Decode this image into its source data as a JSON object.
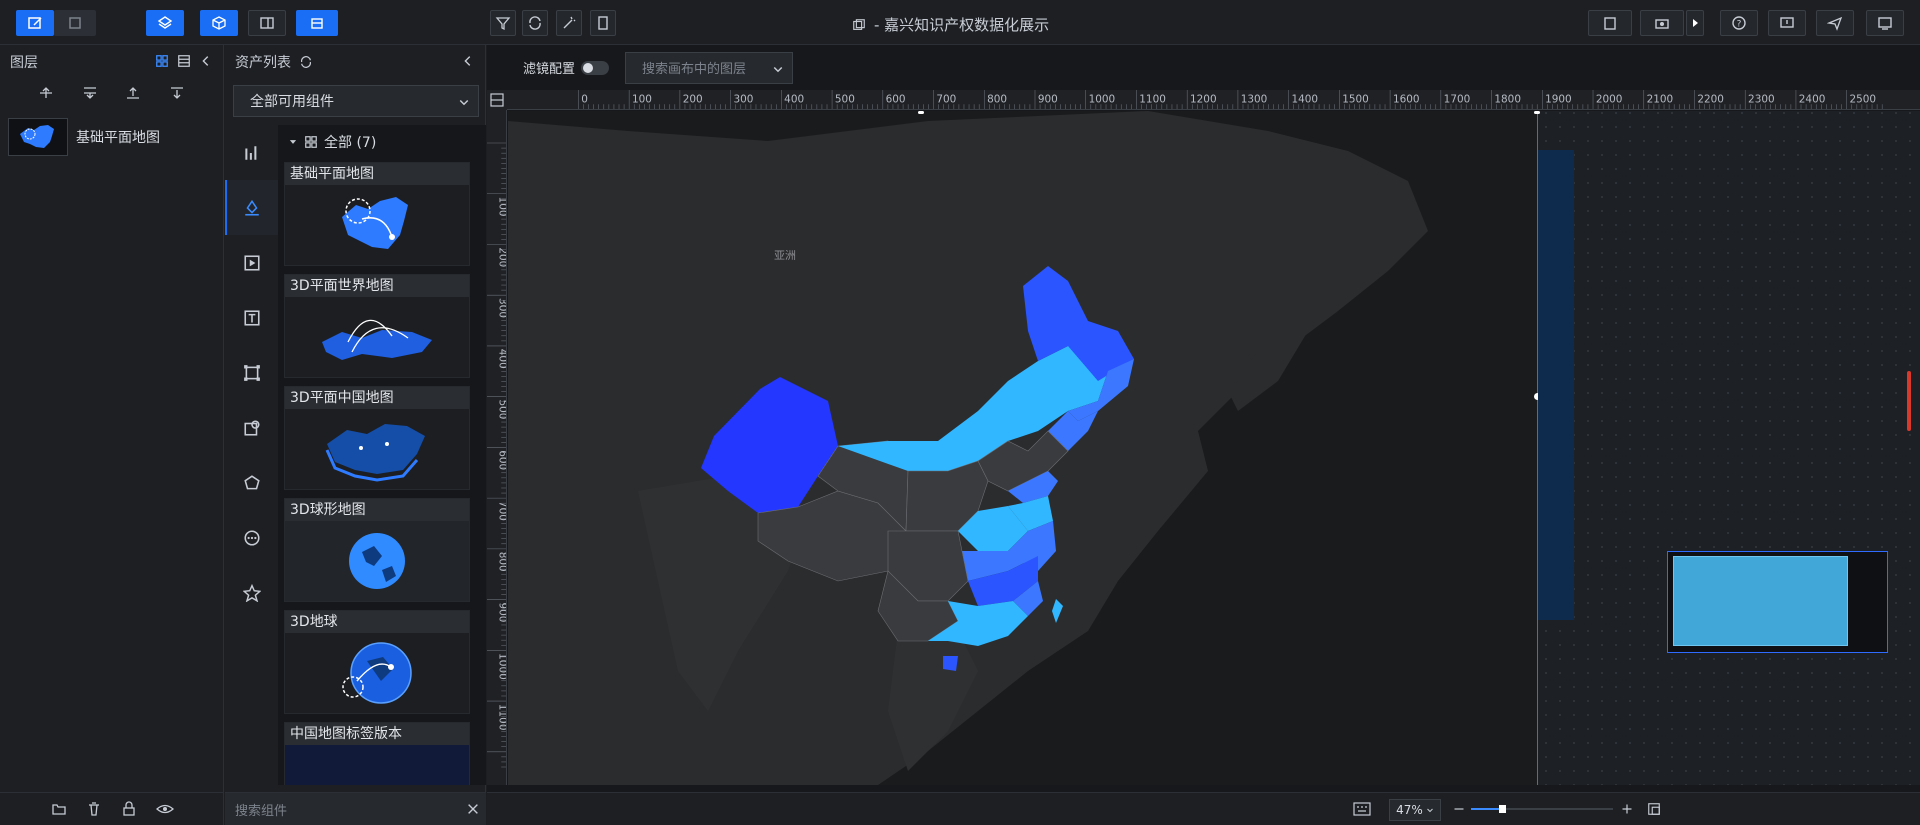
{
  "header": {
    "title": "- 嘉兴知识产权数据化展示"
  },
  "layers_panel": {
    "title": "图层",
    "items": [
      {
        "label": "基础平面地图"
      }
    ]
  },
  "assets_panel": {
    "title": "资产列表",
    "filter_value": "全部可用组件",
    "group_label": "全部 (7)",
    "cards": [
      {
        "label": "基础平面地图"
      },
      {
        "label": "3D平面世界地图"
      },
      {
        "label": "3D平面中国地图"
      },
      {
        "label": "3D球形地图"
      },
      {
        "label": "3D地球"
      },
      {
        "label": "中国地图标签版本"
      }
    ],
    "search_placeholder": "搜索组件"
  },
  "canvas": {
    "filter_label": "滤镜配置",
    "layer_search_placeholder": "搜索画布中的图层",
    "ruler_top_ticks": [
      "0",
      "100",
      "200",
      "300",
      "400",
      "500",
      "600",
      "700",
      "800",
      "900",
      "1000",
      "1100",
      "1200",
      "1300",
      "1400",
      "1500",
      "1600",
      "1700",
      "1800",
      "1900",
      "2000",
      "2100",
      "2200",
      "2300",
      "2400",
      "2500"
    ],
    "ruler_left_ticks": [
      "100",
      "200",
      "300",
      "400",
      "500",
      "600",
      "700",
      "800",
      "900",
      "1000",
      "1100"
    ],
    "map_labels": {
      "asia": "亚洲"
    },
    "zoom": "47%"
  }
}
